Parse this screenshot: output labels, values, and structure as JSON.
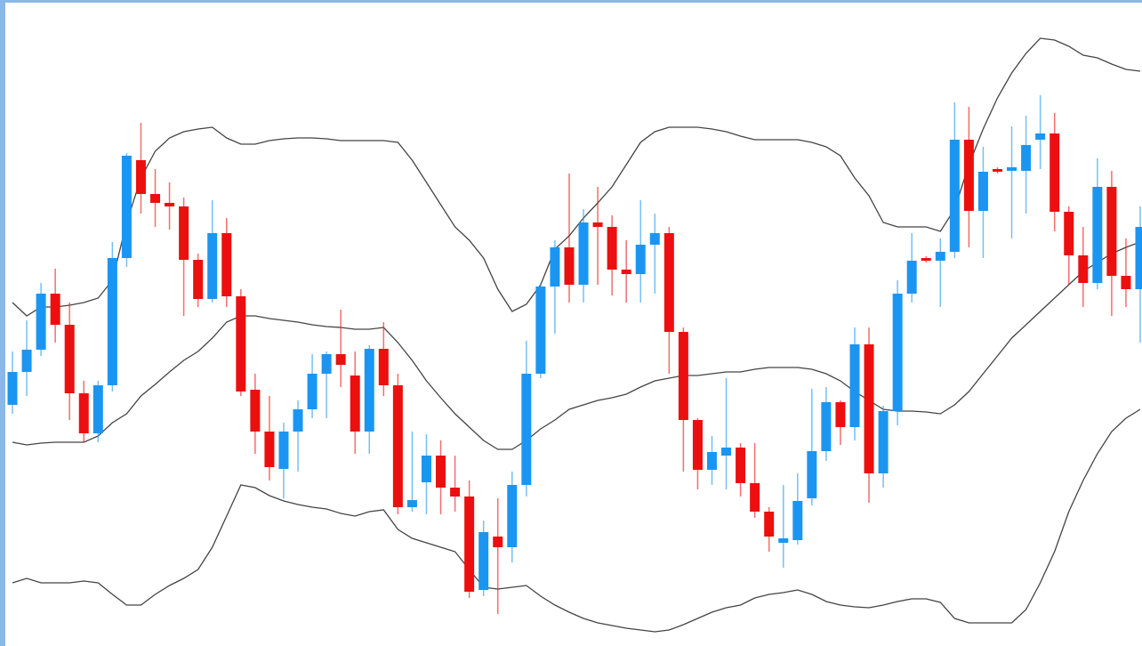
{
  "chart_data": {
    "type": "candlestick",
    "categories": [
      null,
      null,
      null,
      null,
      null,
      null,
      null,
      null,
      null,
      null,
      null,
      null,
      null,
      null,
      null,
      null,
      null,
      null,
      null,
      null,
      null,
      null,
      null,
      null,
      null,
      null,
      null,
      null,
      null,
      null,
      null,
      null,
      null,
      null,
      null,
      null,
      null,
      null,
      null,
      null,
      null,
      null,
      null,
      null,
      null,
      null,
      null,
      null,
      null,
      null,
      null,
      null,
      null,
      null,
      null,
      null,
      null,
      null,
      null,
      null,
      null,
      null,
      null,
      null,
      null,
      null,
      null,
      null,
      null,
      null,
      null,
      null,
      null,
      null,
      null,
      null,
      null,
      null,
      null,
      null
    ],
    "open": [
      271,
      308,
      333,
      396,
      361,
      284,
      239,
      293,
      436,
      546,
      508,
      498,
      494,
      434,
      390,
      464,
      393,
      288,
      241,
      199,
      241,
      266,
      306,
      328,
      304,
      241,
      334,
      293,
      156,
      184,
      214,
      178,
      168,
      63,
      123,
      111,
      181,
      306,
      404,
      448,
      406,
      476,
      471,
      423,
      418,
      451,
      464,
      353,
      254,
      198,
      214,
      223,
      183,
      151,
      116,
      119,
      166,
      219,
      274,
      246,
      339,
      194,
      264,
      396,
      436,
      433,
      443,
      569,
      489,
      536,
      534,
      534,
      569,
      576,
      488,
      439,
      408,
      516,
      416,
      401
    ],
    "high": [
      331,
      366,
      408,
      424,
      386,
      298,
      298,
      454,
      554,
      588,
      536,
      521,
      504,
      441,
      501,
      481,
      401,
      306,
      281,
      251,
      276,
      328,
      331,
      378,
      331,
      338,
      364,
      306,
      241,
      238,
      231,
      214,
      186,
      141,
      166,
      196,
      343,
      408,
      456,
      531,
      491,
      516,
      484,
      456,
      501,
      486,
      471,
      358,
      256,
      236,
      301,
      228,
      228,
      156,
      181,
      194,
      289,
      291,
      276,
      358,
      358,
      270,
      411,
      464,
      438,
      458,
      611,
      606,
      561,
      538,
      584,
      596,
      619,
      599,
      494,
      471,
      548,
      534,
      458,
      494
    ],
    "low": [
      261,
      281,
      326,
      341,
      254,
      229,
      229,
      286,
      426,
      486,
      471,
      468,
      371,
      381,
      386,
      381,
      281,
      216,
      186,
      166,
      196,
      256,
      256,
      291,
      216,
      216,
      281,
      148,
      151,
      148,
      148,
      151,
      54,
      56,
      36,
      94,
      168,
      301,
      351,
      386,
      386,
      406,
      394,
      386,
      386,
      396,
      306,
      196,
      176,
      181,
      176,
      168,
      144,
      106,
      88,
      114,
      158,
      208,
      226,
      231,
      161,
      178,
      248,
      386,
      431,
      381,
      436,
      448,
      436,
      531,
      458,
      486,
      536,
      466,
      406,
      381,
      401,
      371,
      381,
      341
    ],
    "close": [
      308,
      333,
      396,
      361,
      284,
      239,
      293,
      436,
      551,
      508,
      498,
      494,
      434,
      390,
      464,
      393,
      286,
      241,
      201,
      241,
      266,
      306,
      328,
      316,
      241,
      334,
      293,
      156,
      164,
      214,
      178,
      168,
      61,
      128,
      111,
      181,
      306,
      404,
      448,
      406,
      476,
      471,
      423,
      418,
      451,
      464,
      353,
      254,
      198,
      218,
      223,
      183,
      151,
      123,
      121,
      163,
      219,
      274,
      246,
      339,
      194,
      264,
      396,
      433,
      433,
      443,
      569,
      489,
      533,
      533,
      538,
      563,
      576,
      488,
      439,
      408,
      516,
      416,
      401,
      471
    ],
    "up_color": "#1a96f2",
    "down_color": "#ec0f0f",
    "overlays": [
      {
        "color": "#444444",
        "values": [
          386,
          371,
          381,
          381,
          383,
          386,
          391,
          411,
          476,
          526,
          556,
          571,
          578,
          581,
          583,
          571,
          564,
          564,
          568,
          570,
          571,
          571,
          570,
          568,
          568,
          568,
          568,
          566,
          546,
          521,
          496,
          471,
          456,
          436,
          401,
          376,
          384,
          406,
          446,
          461,
          481,
          498,
          516,
          541,
          566,
          578,
          583,
          583,
          583,
          581,
          578,
          573,
          569,
          569,
          569,
          569,
          566,
          561,
          551,
          526,
          506,
          476,
          471,
          471,
          471,
          466,
          491,
          541,
          581,
          616,
          644,
          666,
          683,
          681,
          674,
          664,
          661,
          654,
          648,
          646
        ]
      },
      {
        "color": "#444444",
        "values": [
          229,
          226,
          228,
          229,
          229,
          229,
          236,
          251,
          261,
          281,
          294,
          308,
          321,
          331,
          346,
          364,
          371,
          371,
          368,
          366,
          364,
          361,
          359,
          358,
          356,
          356,
          358,
          341,
          321,
          298,
          279,
          261,
          246,
          231,
          221,
          221,
          231,
          244,
          254,
          266,
          271,
          276,
          279,
          283,
          291,
          298,
          301,
          304,
          304,
          306,
          308,
          308,
          311,
          313,
          313,
          313,
          311,
          306,
          298,
          286,
          276,
          266,
          264,
          264,
          263,
          261,
          271,
          286,
          306,
          326,
          346,
          361,
          376,
          391,
          406,
          421,
          431,
          441,
          448,
          454
        ]
      },
      {
        "color": "#444444",
        "values": [
          71,
          76,
          71,
          71,
          71,
          73,
          71,
          58,
          46,
          46,
          58,
          68,
          76,
          86,
          111,
          146,
          181,
          178,
          169,
          163,
          159,
          156,
          154,
          149,
          146,
          151,
          153,
          131,
          121,
          116,
          111,
          106,
          86,
          66,
          64,
          66,
          68,
          56,
          46,
          38,
          31,
          26,
          23,
          20,
          18,
          16,
          18,
          24,
          31,
          38,
          43,
          46,
          54,
          58,
          60,
          63,
          58,
          50,
          46,
          44,
          43,
          46,
          50,
          53,
          53,
          49,
          31,
          26,
          26,
          26,
          26,
          41,
          71,
          106,
          151,
          186,
          216,
          241,
          256,
          266
        ]
      }
    ]
  }
}
